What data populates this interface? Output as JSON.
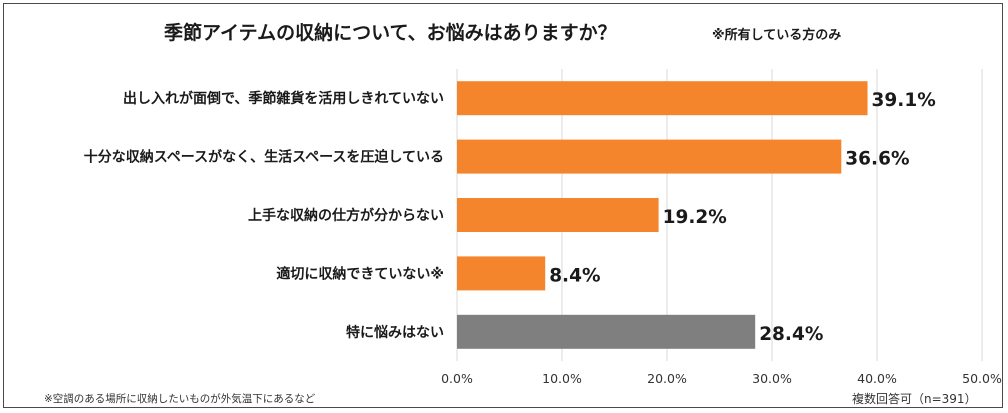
{
  "title": "季節アイテムの収納について、お悩みはありますか？",
  "title_note": "※所有している方のみ",
  "footnote": "※空調のある場所に収納したいものが外気温下にあるなど",
  "sample_note": "複数回答可（n=391）",
  "colors": {
    "bar": "#f5852d",
    "bar_highlight": "#7f7f7f",
    "grid": "#d9d9d9"
  },
  "chart_data": {
    "type": "bar",
    "orientation": "horizontal",
    "categories": [
      "出し入れが面倒で、季節雑貨を活用しきれていない",
      "十分な収納スペースがなく、生活スペースを圧迫している",
      "上手な収納の仕方が分からない",
      "適切に収納できていない※",
      "特に悩みはない"
    ],
    "values": [
      39.1,
      36.6,
      19.2,
      8.4,
      28.4
    ],
    "data_labels": [
      "39.1%",
      "36.6%",
      "19.2%",
      "8.4%",
      "28.4%"
    ],
    "bar_colors": [
      "#f5852d",
      "#f5852d",
      "#f5852d",
      "#f5852d",
      "#7f7f7f"
    ],
    "xlim": [
      0,
      50
    ],
    "x_ticks": [
      0,
      10,
      20,
      30,
      40,
      50
    ],
    "x_tick_labels": [
      "0.0%",
      "10.0%",
      "20.0%",
      "30.0%",
      "40.0%",
      "50.0%"
    ],
    "grid": true,
    "legend": "none",
    "xlabel": "",
    "ylabel": ""
  }
}
